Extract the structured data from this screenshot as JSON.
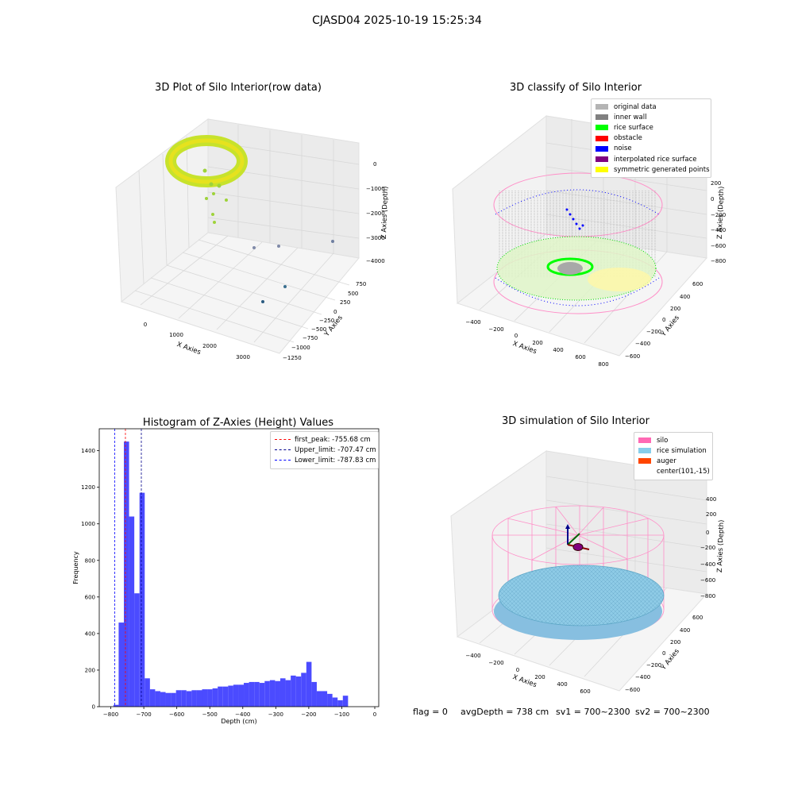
{
  "figure": {
    "suptitle": "CJASD04 2025-10-19 15:25:34",
    "footer": {
      "flag": "flag = 0",
      "avg_depth": "avgDepth = 738 cm",
      "sv1": "sv1 = 700~2300",
      "sv2": "sv2 = 700~2300"
    }
  },
  "panels": {
    "raw": {
      "title": "3D Plot of Silo Interior(row data)",
      "xlabel": "X Axies",
      "ylabel": "Y Axies",
      "zlabel": "Z Axies (Depth)",
      "x_ticks": [
        "0",
        "1000",
        "2000",
        "3000"
      ],
      "y_ticks": [
        "750",
        "500",
        "250",
        "0",
        "−250",
        "−500",
        "−750",
        "−1000",
        "−1250"
      ],
      "z_ticks": [
        "0",
        "−1000",
        "−2000",
        "−3000",
        "−4000"
      ]
    },
    "classify": {
      "title": "3D classify of Silo Interior",
      "xlabel": "X Axies",
      "ylabel": "Y Axies",
      "zlabel": "Z Axies (Depth)",
      "x_ticks": [
        "−400",
        "−200",
        "0",
        "200",
        "400",
        "600",
        "800"
      ],
      "y_ticks": [
        "600",
        "400",
        "200",
        "0",
        "−200",
        "−400",
        "−600"
      ],
      "z_ticks": [
        "200",
        "0",
        "−200",
        "−400",
        "−600",
        "−800"
      ],
      "legend": [
        {
          "label": "original data",
          "color": "#b4b4b4"
        },
        {
          "label": "inner wall",
          "color": "#808080"
        },
        {
          "label": "rice surface",
          "color": "#00ff00"
        },
        {
          "label": "obstacle",
          "color": "#ff0000"
        },
        {
          "label": "noise",
          "color": "#0000ff"
        },
        {
          "label": "interpolated rice surface",
          "color": "#800080"
        },
        {
          "label": "symmetric generated points",
          "color": "#ffff00"
        }
      ]
    },
    "simulation": {
      "title": "3D simulation of Silo Interior",
      "xlabel": "X Axies",
      "ylabel": "Y Axies",
      "zlabel": "Z Axies (Depth)",
      "x_ticks": [
        "−400",
        "−200",
        "0",
        "200",
        "400",
        "600"
      ],
      "y_ticks": [
        "600",
        "400",
        "200",
        "0",
        "−200",
        "−400",
        "−600"
      ],
      "z_ticks": [
        "400",
        "200",
        "0",
        "−200",
        "−400",
        "−600",
        "−800"
      ],
      "legend": [
        {
          "label": "silo",
          "color": "#ff69b4"
        },
        {
          "label": "rice simulation",
          "color": "#87ceeb"
        },
        {
          "label": "auger",
          "color": "#ff4500"
        },
        {
          "label": "center(101,-15)",
          "color": ""
        }
      ]
    }
  },
  "chart_data": [
    {
      "type": "scatter",
      "title": "3D Plot of Silo Interior(row data)",
      "xlabel": "X Axies",
      "ylabel": "Y Axies",
      "zlabel": "Z Axies (Depth)",
      "xlim": [
        -400,
        3600
      ],
      "ylim": [
        -1300,
        900
      ],
      "zlim": [
        -4300,
        200
      ]
    },
    {
      "type": "scatter",
      "title": "3D classify of Silo Interior",
      "xlabel": "X Axies",
      "ylabel": "Y Axies",
      "zlabel": "Z Axies (Depth)",
      "series": [
        {
          "name": "original data"
        },
        {
          "name": "inner wall"
        },
        {
          "name": "rice surface"
        },
        {
          "name": "obstacle"
        },
        {
          "name": "noise"
        },
        {
          "name": "interpolated rice surface"
        },
        {
          "name": "symmetric generated points"
        }
      ]
    },
    {
      "type": "bar",
      "title": "Histogram of Z-Axies (Height) Values",
      "xlabel": "Depth (cm)",
      "ylabel": "Frequency",
      "xlim": [
        -835,
        12
      ],
      "ylim": [
        0,
        1520
      ],
      "x_ticks": [
        -800,
        -700,
        -600,
        -500,
        -400,
        -300,
        -200,
        -100,
        0
      ],
      "y_ticks": [
        0,
        200,
        400,
        600,
        800,
        1000,
        1200,
        1400
      ],
      "bin_start": -792,
      "bin_width": 15.8,
      "values": [
        10,
        460,
        1450,
        1040,
        620,
        1170,
        155,
        95,
        85,
        80,
        75,
        75,
        90,
        90,
        85,
        90,
        90,
        95,
        95,
        100,
        110,
        110,
        115,
        120,
        120,
        130,
        135,
        135,
        130,
        140,
        145,
        140,
        155,
        145,
        170,
        165,
        185,
        245,
        135,
        85,
        85,
        70,
        50,
        35,
        60
      ],
      "vlines": [
        {
          "name": "first_peak: -755.68 cm",
          "x": -755.68,
          "color": "#ff0000"
        },
        {
          "name": "Upper_limit: -707.47 cm",
          "x": -707.47,
          "color": "#00008b"
        },
        {
          "name": "Lower_limit: -787.83 cm",
          "x": -787.83,
          "color": "#0000ff"
        }
      ],
      "legend_position": "top-right",
      "bar_color": "#4b4bff"
    },
    {
      "type": "scatter",
      "title": "3D simulation of Silo Interior",
      "xlabel": "X Axies",
      "ylabel": "Y Axies",
      "zlabel": "Z Axies (Depth)",
      "series": [
        {
          "name": "silo"
        },
        {
          "name": "rice simulation"
        },
        {
          "name": "auger"
        }
      ],
      "center": [
        101,
        -15
      ]
    }
  ]
}
